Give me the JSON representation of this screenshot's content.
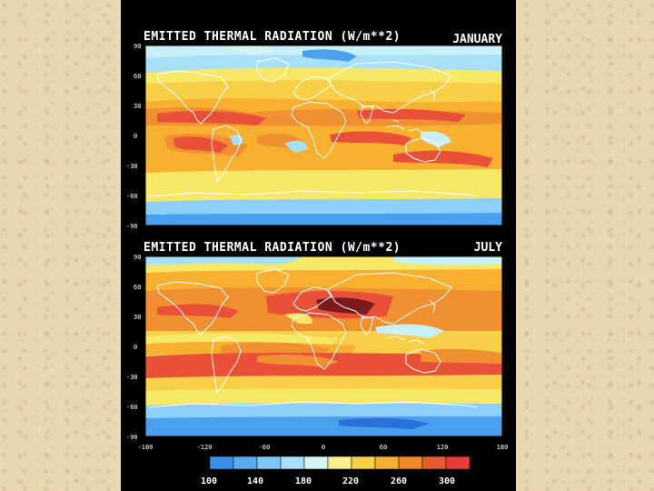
{
  "slide": {
    "background": "#000000",
    "page_background": "#e8d8b0"
  },
  "panels": [
    {
      "id": "january",
      "title": "EMITTED THERMAL RADIATION (W/m**2)",
      "month": "JANUARY",
      "lat_ticks": [
        "90",
        "60",
        "30",
        "0",
        "-30",
        "-60",
        "-90"
      ]
    },
    {
      "id": "july",
      "title": "EMITTED THERMAL RADIATION (W/m**2)",
      "month": "JULY",
      "lat_ticks": [
        "90",
        "60",
        "30",
        "0",
        "-30",
        "-60",
        "-90"
      ]
    }
  ],
  "lon_ticks": [
    "-180",
    "-120",
    "-60",
    "0",
    "60",
    "120",
    "180"
  ],
  "colorbar": {
    "ticks": [
      "100",
      "140",
      "180",
      "220",
      "260",
      "300"
    ],
    "colors": [
      "#3a8fe8",
      "#5aaaf0",
      "#7ec8f8",
      "#a8e0fa",
      "#d8f4f0",
      "#f8f08a",
      "#f8d048",
      "#f8b030",
      "#f08a28",
      "#e85a30",
      "#e83a3a"
    ]
  },
  "scale_colors": {
    "deep_blue": "#2a70d8",
    "blue": "#4aa0ee",
    "light_blue": "#8cd0f8",
    "pale_cyan": "#c8f0f8",
    "yellow": "#f8e868",
    "orange": "#f8b030",
    "dark_orange": "#f09030",
    "red": "#e85038",
    "dark_red": "#7a1a1a"
  }
}
